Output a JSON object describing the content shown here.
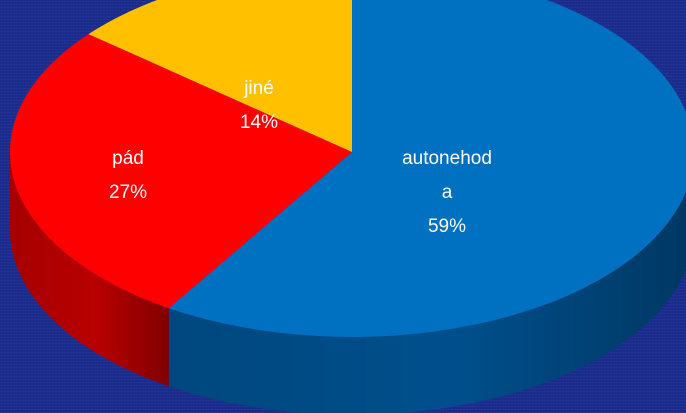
{
  "chart_data": {
    "type": "pie",
    "style": "3d",
    "slices": [
      {
        "category": "autonehoda",
        "label_lines": [
          "autonehod",
          "a"
        ],
        "percent_label": "59%",
        "value": 59,
        "color": "#0070c0",
        "side_color": "#004f8c"
      },
      {
        "category": "pád",
        "label_lines": [
          "pád"
        ],
        "percent_label": "27%",
        "value": 27,
        "color": "#ff0000",
        "side_color": "#b80000"
      },
      {
        "category": "jiné",
        "label_lines": [
          "jiné"
        ],
        "percent_label": "14%",
        "value": 14,
        "color": "#ffc000",
        "side_color": "#c08f00"
      }
    ]
  }
}
